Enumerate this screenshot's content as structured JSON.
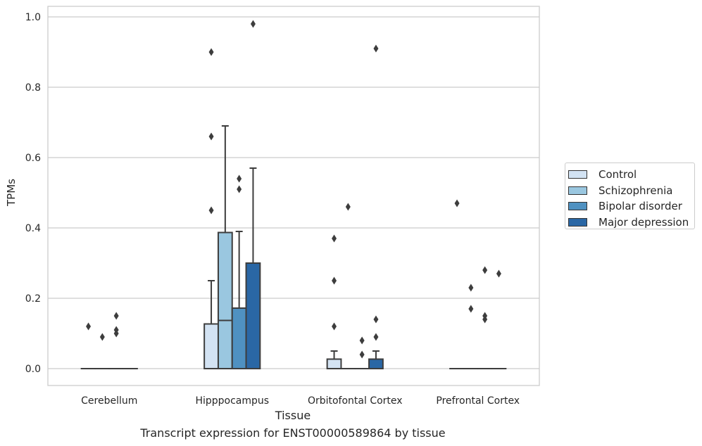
{
  "chart_data": {
    "type": "box",
    "title": "",
    "caption": "Transcript expression for ENST00000589864 by tissue",
    "xlabel": "Tissue",
    "ylabel": "TPMs",
    "ylim": [
      -0.045,
      1.03
    ],
    "yticks": [
      "0.0",
      "0.2",
      "0.4",
      "0.6",
      "0.8",
      "1.0"
    ],
    "grid": "horizontal",
    "legend_position": "right",
    "categories": [
      "Cerebellum",
      "Hipppocampus",
      "Orbitofontal Cortex",
      "Prefrontal Cortex"
    ],
    "series": [
      {
        "name": "Control",
        "color": "#d3e3f3",
        "boxes": [
          {
            "q1": 0,
            "median": 0,
            "q3": 0,
            "whisker_low": 0,
            "whisker_high": 0,
            "outliers": [
              0.12
            ]
          },
          {
            "q1": 0,
            "median": 0.127,
            "q3": 0.127,
            "whisker_low": 0,
            "whisker_high": 0.25,
            "outliers": [
              0.45,
              0.66,
              0.9
            ]
          },
          {
            "q1": 0,
            "median": 0,
            "q3": 0.027,
            "whisker_low": 0,
            "whisker_high": 0.05,
            "outliers": [
              0.12,
              0.25,
              0.37
            ]
          },
          {
            "q1": 0,
            "median": 0,
            "q3": 0,
            "whisker_low": 0,
            "whisker_high": 0,
            "outliers": [
              0.47
            ]
          }
        ]
      },
      {
        "name": "Schizophrenia",
        "color": "#9ac7e0",
        "boxes": [
          {
            "q1": 0,
            "median": 0,
            "q3": 0,
            "whisker_low": 0,
            "whisker_high": 0,
            "outliers": [
              0.09
            ]
          },
          {
            "q1": 0,
            "median": 0.137,
            "q3": 0.387,
            "whisker_low": 0,
            "whisker_high": 0.69,
            "outliers": []
          },
          {
            "q1": 0,
            "median": 0,
            "q3": 0,
            "whisker_low": 0,
            "whisker_high": 0,
            "outliers": [
              0.46
            ]
          },
          {
            "q1": 0,
            "median": 0,
            "q3": 0,
            "whisker_low": 0,
            "whisker_high": 0,
            "outliers": [
              0.17,
              0.23
            ]
          }
        ]
      },
      {
        "name": "Bipolar disorder",
        "color": "#4f91c1",
        "boxes": [
          {
            "q1": 0,
            "median": 0,
            "q3": 0,
            "whisker_low": 0,
            "whisker_high": 0,
            "outliers": [
              0.1,
              0.11,
              0.15
            ]
          },
          {
            "q1": 0,
            "median": 0.172,
            "q3": 0.172,
            "whisker_low": 0,
            "whisker_high": 0.39,
            "outliers": [
              0.51,
              0.54
            ]
          },
          {
            "q1": 0,
            "median": 0,
            "q3": 0,
            "whisker_low": 0,
            "whisker_high": 0,
            "outliers": [
              0.04,
              0.08
            ]
          },
          {
            "q1": 0,
            "median": 0,
            "q3": 0,
            "whisker_low": 0,
            "whisker_high": 0,
            "outliers": [
              0.14,
              0.15,
              0.28
            ]
          }
        ]
      },
      {
        "name": "Major depression",
        "color": "#2a67a5",
        "boxes": [
          {
            "q1": 0,
            "median": 0,
            "q3": 0,
            "whisker_low": 0,
            "whisker_high": 0,
            "outliers": []
          },
          {
            "q1": 0,
            "median": 0.3,
            "q3": 0.3,
            "whisker_low": 0,
            "whisker_high": 0.57,
            "outliers": [
              0.98
            ]
          },
          {
            "q1": 0,
            "median": 0,
            "q3": 0.027,
            "whisker_low": 0,
            "whisker_high": 0.05,
            "outliers": [
              0.09,
              0.14,
              0.91
            ]
          },
          {
            "q1": 0,
            "median": 0,
            "q3": 0,
            "whisker_low": 0,
            "whisker_high": 0,
            "outliers": [
              0.27
            ]
          }
        ]
      }
    ]
  }
}
